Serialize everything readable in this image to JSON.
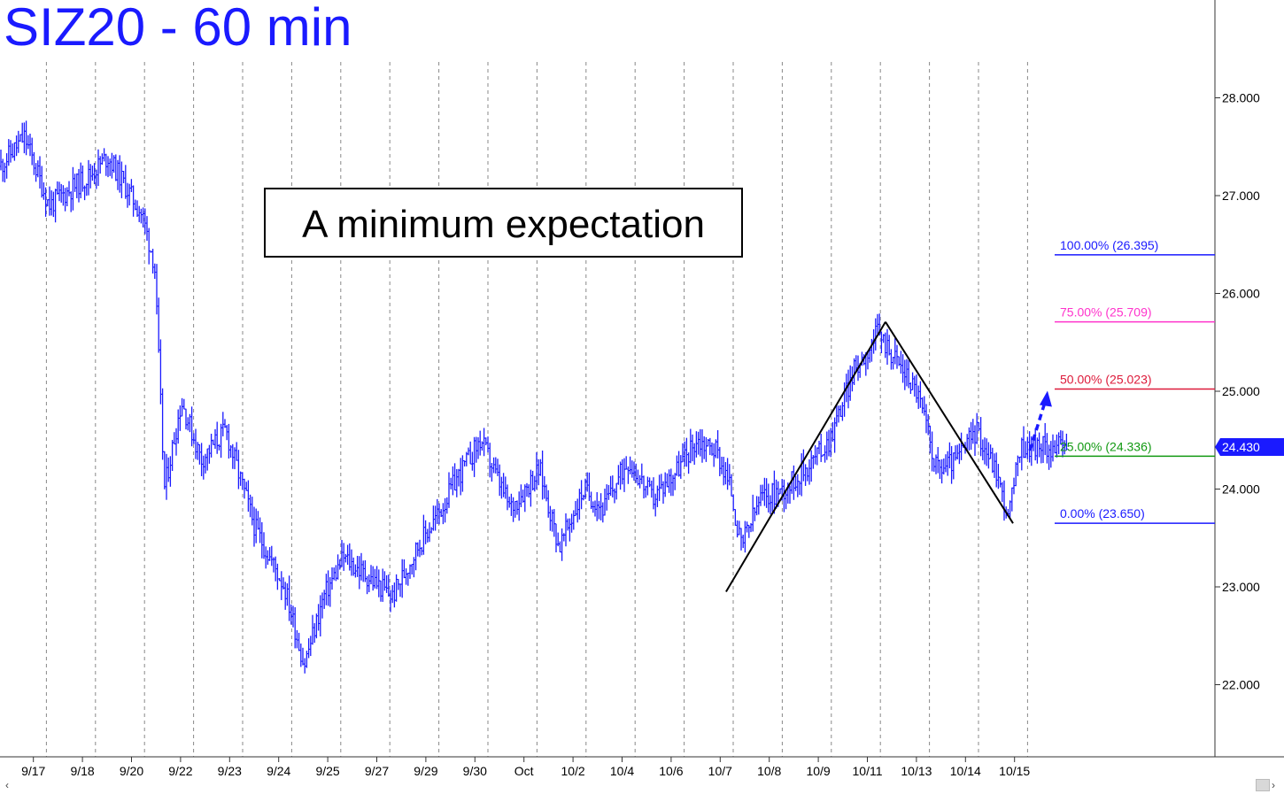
{
  "title": "SIZ20 - 60 min",
  "annotation": "A minimum expectation",
  "colors": {
    "bars": "#1a1aff",
    "axis": "#333333",
    "grid": "#888888",
    "price_tag_bg": "#1a1aff"
  },
  "chart_data": {
    "type": "ohlc",
    "title": "SIZ20 - 60 min",
    "y_axis": {
      "ticks": [
        "28.000",
        "27.000",
        "26.000",
        "25.000",
        "24.000",
        "23.000",
        "22.000"
      ],
      "ylim": [
        21.2,
        28.9
      ],
      "position": "right"
    },
    "x_axis": {
      "ticks": [
        "9/17",
        "9/18",
        "9/20",
        "9/22",
        "9/23",
        "9/24",
        "9/25",
        "9/27",
        "9/29",
        "9/30",
        "Oct",
        "10/2",
        "10/4",
        "10/6",
        "10/7",
        "10/8",
        "10/9",
        "10/11",
        "10/13",
        "10/14",
        "10/15"
      ],
      "session_index": [
        0.5,
        1.5,
        2.5,
        3.5,
        4.5,
        5.5,
        6.5,
        7.5,
        8.5,
        9.5,
        10.5,
        11.5,
        12.5,
        13.5,
        14.5,
        15.5,
        16.5,
        17.5,
        18.5,
        19.5,
        20.5
      ]
    },
    "grid": "vertical dashed at session boundaries",
    "price_path": [
      [
        0,
        27.3
      ],
      [
        0.5,
        27.6
      ],
      [
        1,
        26.9
      ],
      [
        1.8,
        27.2
      ],
      [
        2.2,
        27.4
      ],
      [
        2.9,
        26.8
      ],
      [
        3.15,
        26.3
      ],
      [
        3.35,
        24.0
      ],
      [
        3.7,
        24.9
      ],
      [
        4.1,
        24.3
      ],
      [
        4.6,
        24.6
      ],
      [
        5.2,
        23.6
      ],
      [
        5.8,
        23.0
      ],
      [
        6.2,
        22.2
      ],
      [
        6.6,
        22.9
      ],
      [
        7.0,
        23.3
      ],
      [
        7.5,
        23.1
      ],
      [
        8.0,
        22.9
      ],
      [
        8.5,
        23.4
      ],
      [
        9.0,
        23.8
      ],
      [
        9.3,
        24.1
      ],
      [
        9.8,
        24.5
      ],
      [
        10.4,
        23.8
      ],
      [
        11.0,
        24.2
      ],
      [
        11.4,
        23.4
      ],
      [
        11.9,
        24.0
      ],
      [
        12.3,
        23.8
      ],
      [
        12.8,
        24.3
      ],
      [
        13.3,
        23.9
      ],
      [
        13.8,
        24.2
      ],
      [
        14.2,
        24.5
      ],
      [
        14.6,
        24.4
      ],
      [
        14.9,
        24.0
      ],
      [
        15.1,
        23.4
      ],
      [
        15.5,
        23.9
      ],
      [
        16.0,
        24.0
      ],
      [
        16.4,
        24.2
      ],
      [
        16.9,
        24.5
      ],
      [
        17.4,
        25.2
      ],
      [
        17.9,
        25.6
      ],
      [
        18.3,
        25.3
      ],
      [
        18.7,
        25.0
      ],
      [
        19.1,
        24.2
      ],
      [
        19.5,
        24.3
      ],
      [
        19.9,
        24.6
      ],
      [
        20.3,
        24.2
      ],
      [
        20.55,
        23.7
      ],
      [
        20.8,
        24.43
      ]
    ],
    "trend_lines": [
      {
        "from": [
          14.8,
          22.95
        ],
        "to": [
          18.05,
          25.709
        ]
      },
      {
        "from": [
          18.05,
          25.709
        ],
        "to": [
          20.65,
          23.65
        ]
      }
    ],
    "fib_levels": [
      {
        "label": "100.00% (26.395)",
        "value": 26.395,
        "color": "#1a1aff"
      },
      {
        "label": "75.00% (25.709)",
        "value": 25.709,
        "color": "#ff33cc"
      },
      {
        "label": "50.00% (25.023)",
        "value": 25.023,
        "color": "#dd1a3a"
      },
      {
        "label": "25.00% (24.336)",
        "value": 24.336,
        "color": "#119911"
      },
      {
        "label": "0.00% (23.650)",
        "value": 23.65,
        "color": "#1a1aff"
      }
    ],
    "projection_arrow": {
      "from": [
        20.85,
        24.43
      ],
      "to": [
        21.1,
        25.023
      ]
    },
    "last_price": "24.430"
  }
}
